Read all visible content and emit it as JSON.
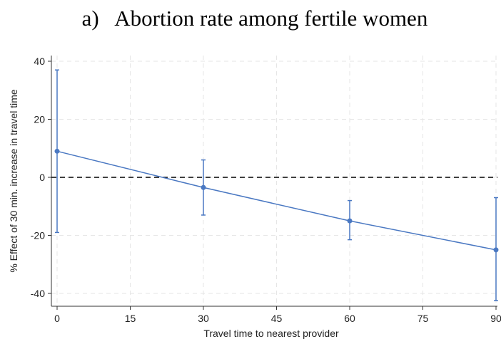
{
  "chart_data": {
    "type": "line",
    "title": "a)   Abortion rate among fertile women",
    "xlabel": "Travel time to nearest provider",
    "ylabel": "% Effect of 30 min. increase in travel time",
    "xlim": [
      0,
      90
    ],
    "ylim": [
      -45,
      42
    ],
    "xticks": [
      0,
      15,
      30,
      45,
      60,
      75,
      90
    ],
    "yticks": [
      -40,
      -20,
      0,
      20,
      40
    ],
    "grid": true,
    "reference_line": {
      "y": 0,
      "style": "dashed",
      "color": "#000000"
    },
    "series": [
      {
        "color": "#4a78c2",
        "x": [
          0,
          30,
          60,
          90
        ],
        "y": [
          9,
          -3.5,
          -15,
          -25
        ],
        "ci_low": [
          -19,
          -13,
          -21.5,
          -42.5
        ],
        "ci_high": [
          37,
          6,
          -8,
          -7
        ]
      }
    ]
  }
}
